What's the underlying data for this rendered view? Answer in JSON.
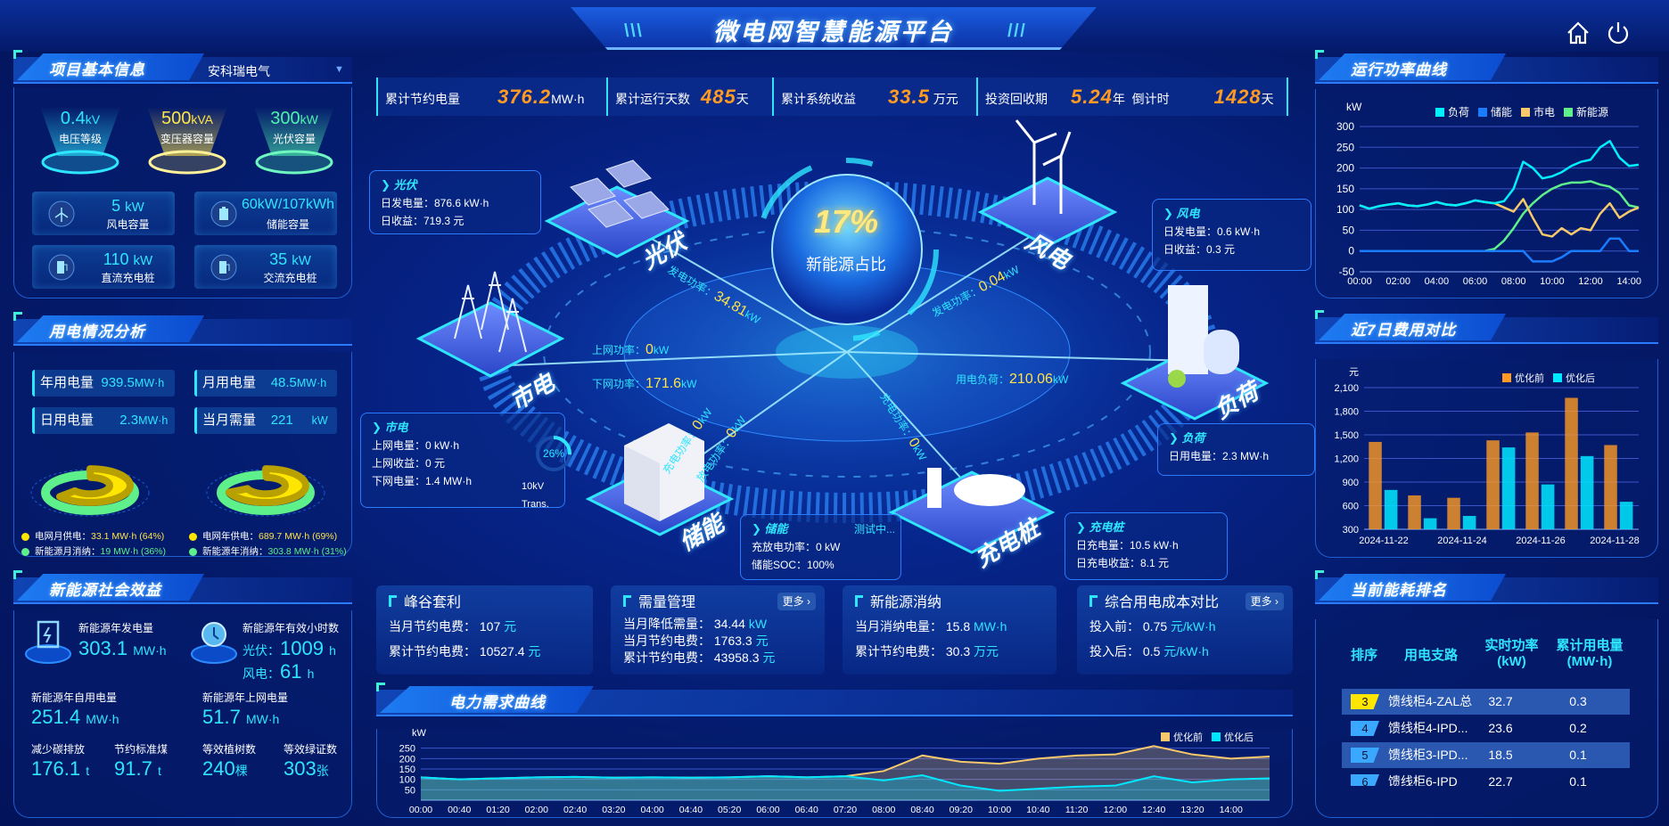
{
  "header": {
    "title": "微电网智慧能源平台",
    "icons": [
      "home-icon",
      "power-icon"
    ]
  },
  "project_info": {
    "title": "项目基本信息",
    "company": "安科瑞电气",
    "gauges": [
      {
        "value": "0.4",
        "unit": "kV",
        "label": "电压等级",
        "color": "#2ee6ff"
      },
      {
        "value": "500",
        "unit": "kVA",
        "label": "变压器容量",
        "color": "#ffe34a"
      },
      {
        "value": "300",
        "unit": "kW",
        "label": "光伏容量",
        "color": "#4ff0b0"
      }
    ],
    "cards": [
      {
        "value": "5",
        "unit": "kW",
        "label": "风电容量",
        "icon": "wind-turbine-icon"
      },
      {
        "value": "60kW/107kWh",
        "unit": "",
        "label": "储能容量",
        "icon": "battery-icon"
      },
      {
        "value": "110",
        "unit": "kW",
        "label": "直流充电桩",
        "icon": "charger-icon"
      },
      {
        "value": "35",
        "unit": "kW",
        "label": "交流充电桩",
        "icon": "charger-icon"
      }
    ]
  },
  "usage": {
    "title": "用电情况分析",
    "stats": [
      {
        "label": "年用电量",
        "value": "939.5",
        "unit": "MW·h"
      },
      {
        "label": "月用电量",
        "value": "48.5",
        "unit": "MW·h"
      },
      {
        "label": "日用电量",
        "value": "2.3",
        "unit": "MW·h"
      },
      {
        "label": "当月需量",
        "value": "221",
        "unit": "kW"
      }
    ],
    "donuts": [
      {
        "grid_label": "电网月供电：",
        "grid_value": "33.1 MW·h (64%)",
        "grid_pct": 64,
        "new_label": "新能源月消纳：",
        "new_value": "19 MW·h (36%)",
        "new_pct": 36
      },
      {
        "grid_label": "电网年供电：",
        "grid_value": "689.7 MW·h (69%)",
        "grid_pct": 69,
        "new_label": "新能源年消纳：",
        "new_value": "303.8 MW·h (31%)",
        "new_pct": 31
      }
    ],
    "colors": {
      "grid": "#ffe600",
      "new": "#5ef08a"
    }
  },
  "social": {
    "title": "新能源社会效益",
    "annual_gen": {
      "label": "新能源年发电量",
      "value": "303.1",
      "unit": "MW·h"
    },
    "hours": {
      "label": "新能源年有效小时数",
      "pv_label": "光伏：",
      "pv_value": "1009",
      "wind_label": "风电：",
      "wind_value": "61",
      "unit": "h"
    },
    "self_use": {
      "label": "新能源年自用电量",
      "value": "251.4",
      "unit": "MW·h"
    },
    "grid_export": {
      "label": "新能源年上网电量",
      "value": "51.7",
      "unit": "MW·h"
    },
    "carbon": {
      "label": "减少碳排放",
      "value": "176.1",
      "unit": "t"
    },
    "coal": {
      "label": "节约标准煤",
      "value": "91.7",
      "unit": "t"
    },
    "trees": {
      "label": "等效植树数",
      "value": "240",
      "unit": "棵"
    },
    "certs": {
      "label": "等效绿证数",
      "value": "303",
      "unit": "张"
    }
  },
  "summary": [
    {
      "label": "累计节约电量",
      "value": "376.2",
      "unit": "MW·h"
    },
    {
      "label": "累计运行天数",
      "value": "485",
      "unit": "天"
    },
    {
      "label": "累计系统收益",
      "value": "33.5",
      "unit": "万元"
    },
    {
      "label": "投资回收期",
      "value": "5.24",
      "unit": "年"
    },
    {
      "label": "倒计时",
      "value": "1428",
      "unit": "天"
    }
  ],
  "center": {
    "ratio": "17%",
    "ratio_label": "新能源占比",
    "nodes": {
      "pv": "光伏",
      "wind": "风电",
      "grid": "市电",
      "load": "负荷",
      "storage": "储能",
      "charger": "充电桩"
    },
    "flows": {
      "pv": {
        "label": "发电功率：",
        "value": "34.81",
        "unit": "kW"
      },
      "wind": {
        "label": "发电功率：",
        "value": "0.04",
        "unit": "kW"
      },
      "grid_up": {
        "label": "上网功率：",
        "value": "0",
        "unit": "kW"
      },
      "grid_down": {
        "label": "下网功率：",
        "value": "171.6",
        "unit": "kW"
      },
      "load": {
        "label": "用电负荷：",
        "value": "210.06",
        "unit": "kW"
      },
      "storage_charge": {
        "label": "充电功率：",
        "value": "0",
        "unit": "kW"
      },
      "storage_discharge": {
        "label": "放电功率：",
        "value": "0",
        "unit": "kW"
      },
      "charger": {
        "label": "充电功率：",
        "value": "0",
        "unit": "kW"
      }
    },
    "info": {
      "pv": {
        "title": "光伏",
        "lines": [
          "日发电量：876.6 kW·h",
          "日收益：719.3 元"
        ]
      },
      "wind": {
        "title": "风电",
        "lines": [
          "日发电量：0.6 kW·h",
          "日收益：0.3 元"
        ]
      },
      "grid": {
        "title": "市电",
        "lines": [
          "上网电量：0 kW·h",
          "上网收益：0 元",
          "下网电量：1.4 MW·h"
        ],
        "gauge": "26%",
        "gauge_pct": 26,
        "gauge_label": "10kV Trans."
      },
      "load": {
        "title": "负荷",
        "lines": [
          "日用电量：2.3 MW·h"
        ]
      },
      "storage": {
        "title": "储能",
        "status": "测试中...",
        "lines": [
          "充放电功率：0 kW",
          "储能SOC：100%"
        ]
      },
      "charger": {
        "title": "充电桩",
        "lines": [
          "日充电量：10.5 kW·h",
          "日充电收益：8.1 元"
        ]
      }
    }
  },
  "benefit_cards": [
    {
      "title": "峰谷套利",
      "rows": [
        {
          "label": "当月节约电费：",
          "value": "107",
          "unit": "元"
        },
        {
          "label": "累计节约电费：",
          "value": "10527.4",
          "unit": "元"
        }
      ]
    },
    {
      "title": "需量管理",
      "more": "更多 ›",
      "rows": [
        {
          "label": "当月降低需量：",
          "value": "34.44",
          "unit": "kW"
        },
        {
          "label": "当月节约电费：",
          "value": "1763.3",
          "unit": "元"
        },
        {
          "label": "累计节约电费：",
          "value": "43958.3",
          "unit": "元"
        }
      ]
    },
    {
      "title": "新能源消纳",
      "rows": [
        {
          "label": "当月消纳电量：",
          "value": "15.8",
          "unit": "MW·h"
        },
        {
          "label": "累计节约电费：",
          "value": "30.3",
          "unit": "万元"
        }
      ]
    },
    {
      "title": "综合用电成本对比",
      "more": "更多 ›",
      "rows": [
        {
          "label": "投入前：",
          "value": "0.75",
          "unit": "元/kW·h"
        },
        {
          "label": "投入后：",
          "value": "0.5",
          "unit": "元/kW·h"
        }
      ]
    }
  ],
  "ranking": {
    "title": "当前能耗排名",
    "headers": [
      "排序",
      "用电支路",
      "实时功率\n(kW)",
      "累计用电量\n(MW·h)"
    ],
    "rows": [
      {
        "rank": "3",
        "name": "馈线柜4-ZAL总",
        "power": "32.7",
        "energy": "0.3"
      },
      {
        "rank": "4",
        "name": "馈线柜4-IPD...",
        "power": "23.6",
        "energy": "0.2"
      },
      {
        "rank": "5",
        "name": "馈线柜3-IPD...",
        "power": "18.5",
        "energy": "0.1"
      },
      {
        "rank": "6",
        "name": "馈线柜6-IPD",
        "power": "22.7",
        "energy": "0.1"
      }
    ]
  },
  "chart_data": [
    {
      "id": "power",
      "title": "运行功率曲线",
      "type": "line",
      "ylabel": "kW",
      "ylim": [
        -50,
        300
      ],
      "yticks": [
        -50,
        0,
        50,
        100,
        150,
        200,
        250,
        300
      ],
      "xticks": [
        "00:00",
        "02:00",
        "04:00",
        "06:00",
        "08:00",
        "10:00",
        "12:00",
        "14:00"
      ],
      "x": [
        "00:00",
        "00:30",
        "01:00",
        "01:30",
        "02:00",
        "02:30",
        "03:00",
        "03:30",
        "04:00",
        "04:30",
        "05:00",
        "05:30",
        "06:00",
        "06:30",
        "07:00",
        "07:30",
        "08:00",
        "08:30",
        "09:00",
        "09:30",
        "10:00",
        "10:30",
        "11:00",
        "11:30",
        "12:00",
        "12:30",
        "13:00",
        "13:30",
        "14:00",
        "14:30"
      ],
      "legend": "top",
      "grid": true,
      "series": [
        {
          "name": "负荷",
          "color": "#00f0ff",
          "values": [
            110,
            102,
            108,
            112,
            115,
            110,
            108,
            112,
            118,
            112,
            110,
            115,
            122,
            118,
            115,
            120,
            150,
            215,
            200,
            175,
            180,
            190,
            205,
            215,
            220,
            250,
            265,
            225,
            205,
            208
          ]
        },
        {
          "name": "储能",
          "color": "#1a7cff",
          "values": [
            0,
            0,
            0,
            0,
            0,
            0,
            0,
            0,
            0,
            0,
            0,
            0,
            0,
            0,
            0,
            0,
            0,
            0,
            -25,
            -25,
            -25,
            -15,
            0,
            0,
            0,
            0,
            30,
            30,
            0,
            0
          ]
        },
        {
          "name": "市电",
          "color": "#f7c96a",
          "values": [
            110,
            102,
            108,
            112,
            115,
            110,
            108,
            112,
            118,
            112,
            110,
            115,
            122,
            118,
            115,
            105,
            95,
            125,
            80,
            40,
            35,
            55,
            40,
            55,
            50,
            90,
            115,
            80,
            95,
            105
          ]
        },
        {
          "name": "新能源",
          "color": "#5ef08a",
          "values": [
            0,
            0,
            0,
            0,
            0,
            0,
            0,
            0,
            0,
            0,
            0,
            0,
            0,
            0,
            5,
            25,
            55,
            90,
            115,
            135,
            150,
            160,
            165,
            165,
            168,
            160,
            155,
            140,
            110,
            105
          ]
        }
      ]
    },
    {
      "id": "cost",
      "title": "近7日费用对比",
      "type": "bar",
      "ylabel": "元",
      "ylim": [
        300,
        2100
      ],
      "yticks": [
        300,
        600,
        900,
        1200,
        1500,
        1800,
        2100
      ],
      "categories": [
        "2024-11-22",
        "2024-11-23",
        "2024-11-24",
        "2024-11-25",
        "2024-11-26",
        "2024-11-27",
        "2024-11-28"
      ],
      "xticks": [
        "2024-11-22",
        "2024-11-24",
        "2024-11-26",
        "2024-11-28"
      ],
      "legend": "top-right",
      "grid": true,
      "series": [
        {
          "name": "优化前",
          "color": "#ff9a22",
          "values": [
            1410,
            730,
            700,
            1430,
            1530,
            1970,
            1370
          ]
        },
        {
          "name": "优化后",
          "color": "#00e8ff",
          "values": [
            800,
            440,
            470,
            1340,
            870,
            1230,
            650
          ]
        }
      ]
    },
    {
      "id": "demand",
      "title": "电力需求曲线",
      "type": "area",
      "ylabel": "kW",
      "ylim": [
        0,
        300
      ],
      "yticks": [
        50,
        100,
        150,
        200,
        250
      ],
      "x": [
        "00:00",
        "00:40",
        "01:20",
        "02:00",
        "02:40",
        "03:20",
        "04:00",
        "04:40",
        "05:20",
        "06:00",
        "06:40",
        "07:20",
        "08:00",
        "08:40",
        "09:20",
        "10:00",
        "10:40",
        "11:20",
        "12:00",
        "12:40",
        "13:20",
        "14:00",
        "14:40"
      ],
      "xticks": [
        "00:00",
        "00:40",
        "01:20",
        "02:00",
        "02:40",
        "03:20",
        "04:00",
        "04:40",
        "05:20",
        "06:00",
        "06:40",
        "07:20",
        "08:00",
        "08:40",
        "09:20",
        "10:00",
        "10:40",
        "11:20",
        "12:00",
        "12:40",
        "13:20",
        "14:00"
      ],
      "legend": "top-right",
      "grid": true,
      "series": [
        {
          "name": "优化前",
          "color": "#f7c96a",
          "values": [
            110,
            100,
            105,
            110,
            112,
            108,
            110,
            108,
            110,
            115,
            110,
            115,
            140,
            215,
            185,
            175,
            200,
            215,
            220,
            260,
            220,
            200,
            210
          ]
        },
        {
          "name": "优化后",
          "color": "#00e8ff",
          "values": [
            110,
            100,
            105,
            110,
            112,
            108,
            110,
            108,
            110,
            115,
            110,
            115,
            95,
            120,
            70,
            45,
            55,
            65,
            70,
            115,
            85,
            100,
            105
          ]
        }
      ]
    }
  ]
}
